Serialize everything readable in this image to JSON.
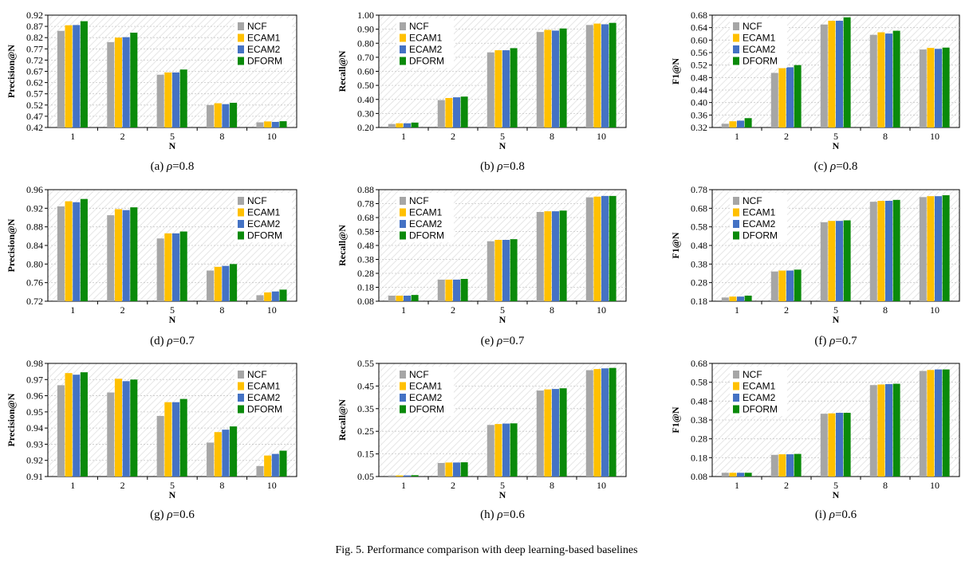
{
  "figure_caption": "Fig. 5.  Performance comparison with deep learning-based baselines",
  "colors": {
    "NCF": "#a6a6a6",
    "ECAM1": "#ffc000",
    "ECAM2": "#4472c4",
    "DFORM": "#0a8a0a"
  },
  "chart_data": [
    {
      "type": "bar",
      "panel": "a",
      "caption_label": "(a)",
      "caption_value": "=0.8",
      "categories": [
        "1",
        "2",
        "5",
        "8",
        "10"
      ],
      "xlabel": "N",
      "ylabel": "Precision@N",
      "ylim": [
        0.42,
        0.92
      ],
      "yticks": [
        "0.42",
        "0.47",
        "0.52",
        "0.57",
        "0.62",
        "0.67",
        "0.72",
        "0.77",
        "0.82",
        "0.87",
        "0.92"
      ],
      "legend_position": "top-right",
      "series": [
        {
          "name": "NCF",
          "values": [
            0.85,
            0.8,
            0.655,
            0.52,
            0.443
          ]
        },
        {
          "name": "ECAM1",
          "values": [
            0.875,
            0.82,
            0.665,
            0.528,
            0.447
          ]
        },
        {
          "name": "ECAM2",
          "values": [
            0.876,
            0.822,
            0.665,
            0.524,
            0.445
          ]
        },
        {
          "name": "DFORM",
          "values": [
            0.893,
            0.842,
            0.678,
            0.53,
            0.448
          ]
        }
      ]
    },
    {
      "type": "bar",
      "panel": "b",
      "caption_label": "(b)",
      "caption_value": "=0.8",
      "categories": [
        "1",
        "2",
        "5",
        "8",
        "10"
      ],
      "xlabel": "N",
      "ylabel": "Recall@N",
      "ylim": [
        0.2,
        1.0
      ],
      "yticks": [
        "0.20",
        "0.30",
        "0.40",
        "0.50",
        "0.60",
        "0.70",
        "0.80",
        "0.90",
        "1.00"
      ],
      "legend_position": "top-left",
      "series": [
        {
          "name": "NCF",
          "values": [
            0.225,
            0.395,
            0.735,
            0.88,
            0.93
          ]
        },
        {
          "name": "ECAM1",
          "values": [
            0.23,
            0.41,
            0.75,
            0.895,
            0.94
          ]
        },
        {
          "name": "ECAM2",
          "values": [
            0.23,
            0.415,
            0.75,
            0.89,
            0.935
          ]
        },
        {
          "name": "DFORM",
          "values": [
            0.235,
            0.42,
            0.765,
            0.905,
            0.945
          ]
        }
      ]
    },
    {
      "type": "bar",
      "panel": "c",
      "caption_label": "(c)",
      "caption_value": "=0.8",
      "categories": [
        "1",
        "2",
        "5",
        "8",
        "10"
      ],
      "xlabel": "N",
      "ylabel": "F1@N",
      "ylim": [
        0.32,
        0.68
      ],
      "yticks": [
        "0.32",
        "0.36",
        "0.40",
        "0.44",
        "0.48",
        "0.52",
        "0.56",
        "0.60",
        "0.64",
        "0.68"
      ],
      "legend_position": "top-left",
      "series": [
        {
          "name": "NCF",
          "values": [
            0.332,
            0.495,
            0.65,
            0.617,
            0.57
          ]
        },
        {
          "name": "ECAM1",
          "values": [
            0.34,
            0.51,
            0.662,
            0.625,
            0.575
          ]
        },
        {
          "name": "ECAM2",
          "values": [
            0.342,
            0.513,
            0.662,
            0.621,
            0.572
          ]
        },
        {
          "name": "DFORM",
          "values": [
            0.35,
            0.52,
            0.673,
            0.63,
            0.576
          ]
        }
      ]
    },
    {
      "type": "bar",
      "panel": "d",
      "caption_label": "(d)",
      "caption_value": "=0.7",
      "categories": [
        "1",
        "2",
        "5",
        "8",
        "10"
      ],
      "xlabel": "N",
      "ylabel": "Precision@N",
      "ylim": [
        0.72,
        0.96
      ],
      "yticks": [
        "0.72",
        "0.76",
        "0.80",
        "0.84",
        "0.88",
        "0.92",
        "0.96"
      ],
      "legend_position": "top-right",
      "series": [
        {
          "name": "NCF",
          "values": [
            0.924,
            0.905,
            0.855,
            0.786,
            0.733
          ]
        },
        {
          "name": "ECAM1",
          "values": [
            0.935,
            0.918,
            0.866,
            0.794,
            0.739
          ]
        },
        {
          "name": "ECAM2",
          "values": [
            0.933,
            0.916,
            0.866,
            0.796,
            0.741
          ]
        },
        {
          "name": "DFORM",
          "values": [
            0.94,
            0.922,
            0.87,
            0.8,
            0.745
          ]
        }
      ]
    },
    {
      "type": "bar",
      "panel": "e",
      "caption_label": "(e)",
      "caption_value": "=0.7",
      "categories": [
        "1",
        "2",
        "5",
        "8",
        "10"
      ],
      "xlabel": "N",
      "ylabel": "Recall@N",
      "ylim": [
        0.08,
        0.88
      ],
      "yticks": [
        "0.08",
        "0.18",
        "0.28",
        "0.38",
        "0.48",
        "0.58",
        "0.68",
        "0.78",
        "0.88"
      ],
      "legend_position": "top-left",
      "series": [
        {
          "name": "NCF",
          "values": [
            0.12,
            0.235,
            0.51,
            0.72,
            0.825
          ]
        },
        {
          "name": "ECAM1",
          "values": [
            0.12,
            0.235,
            0.52,
            0.725,
            0.83
          ]
        },
        {
          "name": "ECAM2",
          "values": [
            0.12,
            0.235,
            0.52,
            0.725,
            0.835
          ]
        },
        {
          "name": "DFORM",
          "values": [
            0.125,
            0.24,
            0.525,
            0.73,
            0.835
          ]
        }
      ]
    },
    {
      "type": "bar",
      "panel": "f",
      "caption_label": "(f)",
      "caption_value": "=0.7",
      "categories": [
        "1",
        "2",
        "5",
        "8",
        "10"
      ],
      "xlabel": "N",
      "ylabel": "F1@N",
      "ylim": [
        0.18,
        0.78
      ],
      "yticks": [
        "0.18",
        "0.28",
        "0.38",
        "0.48",
        "0.58",
        "0.68",
        "0.78"
      ],
      "legend_position": "top-left",
      "series": [
        {
          "name": "NCF",
          "values": [
            0.2,
            0.34,
            0.605,
            0.715,
            0.74
          ]
        },
        {
          "name": "ECAM1",
          "values": [
            0.205,
            0.345,
            0.612,
            0.72,
            0.745
          ]
        },
        {
          "name": "ECAM2",
          "values": [
            0.205,
            0.345,
            0.612,
            0.72,
            0.745
          ]
        },
        {
          "name": "DFORM",
          "values": [
            0.21,
            0.35,
            0.615,
            0.725,
            0.75
          ]
        }
      ]
    },
    {
      "type": "bar",
      "panel": "g",
      "caption_label": "(g)",
      "caption_value": "=0.6",
      "categories": [
        "1",
        "2",
        "5",
        "8",
        "10"
      ],
      "xlabel": "N",
      "ylabel": "Precision@N",
      "ylim": [
        0.91,
        0.98
      ],
      "yticks": [
        "0.91",
        "0.92",
        "0.93",
        "0.94",
        "0.95",
        "0.96",
        "0.97",
        "0.98"
      ],
      "legend_position": "top-right",
      "series": [
        {
          "name": "NCF",
          "values": [
            0.9665,
            0.962,
            0.9475,
            0.931,
            0.9165
          ]
        },
        {
          "name": "ECAM1",
          "values": [
            0.974,
            0.9705,
            0.956,
            0.9375,
            0.923
          ]
        },
        {
          "name": "ECAM2",
          "values": [
            0.973,
            0.969,
            0.956,
            0.939,
            0.924
          ]
        },
        {
          "name": "DFORM",
          "values": [
            0.9745,
            0.97,
            0.958,
            0.941,
            0.926
          ]
        }
      ]
    },
    {
      "type": "bar",
      "panel": "h",
      "caption_label": "(h)",
      "caption_value": "=0.6",
      "categories": [
        "1",
        "2",
        "5",
        "8",
        "10"
      ],
      "xlabel": "N",
      "ylabel": "Recall@N",
      "ylim": [
        0.05,
        0.55
      ],
      "yticks": [
        "0.05",
        "0.15",
        "0.25",
        "0.35",
        "0.45",
        "0.55"
      ],
      "legend_position": "top-left",
      "series": [
        {
          "name": "NCF",
          "values": [
            0.055,
            0.11,
            0.278,
            0.43,
            0.52
          ]
        },
        {
          "name": "ECAM1",
          "values": [
            0.055,
            0.112,
            0.282,
            0.435,
            0.525
          ]
        },
        {
          "name": "ECAM2",
          "values": [
            0.055,
            0.112,
            0.284,
            0.437,
            0.528
          ]
        },
        {
          "name": "DFORM",
          "values": [
            0.056,
            0.113,
            0.285,
            0.44,
            0.53
          ]
        }
      ]
    },
    {
      "type": "bar",
      "panel": "i",
      "caption_label": "(i)",
      "caption_value": "=0.6",
      "categories": [
        "1",
        "2",
        "5",
        "8",
        "10"
      ],
      "xlabel": "N",
      "ylabel": "F1@N",
      "ylim": [
        0.08,
        0.68
      ],
      "yticks": [
        "0.08",
        "0.18",
        "0.28",
        "0.38",
        "0.48",
        "0.58",
        "0.68"
      ],
      "legend_position": "top-left",
      "series": [
        {
          "name": "NCF",
          "values": [
            0.1,
            0.195,
            0.413,
            0.565,
            0.64
          ]
        },
        {
          "name": "ECAM1",
          "values": [
            0.1,
            0.198,
            0.415,
            0.568,
            0.645
          ]
        },
        {
          "name": "ECAM2",
          "values": [
            0.1,
            0.198,
            0.418,
            0.57,
            0.648
          ]
        },
        {
          "name": "DFORM",
          "values": [
            0.1,
            0.2,
            0.418,
            0.572,
            0.648
          ]
        }
      ]
    }
  ]
}
